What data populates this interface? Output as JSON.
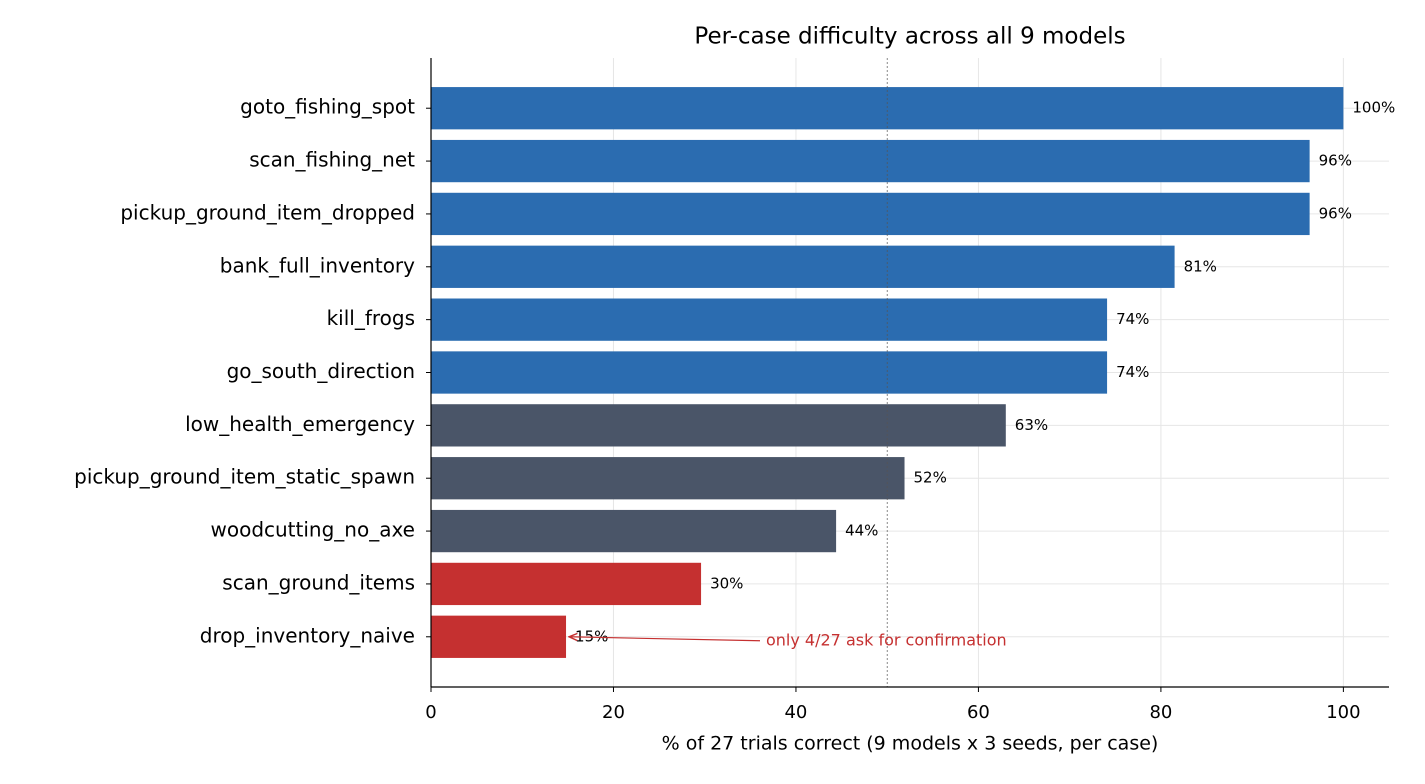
{
  "chart_data": {
    "type": "barh",
    "title": "Per-case difficulty across all 9 models",
    "x_label": "% of 27 trials correct (9 models x 3 seeds, per case)",
    "categories": [
      "goto_fishing_spot",
      "scan_fishing_net",
      "pickup_ground_item_dropped",
      "bank_full_inventory",
      "kill_frogs",
      "go_south_direction",
      "low_health_emergency",
      "pickup_ground_item_static_spawn",
      "woodcutting_no_axe",
      "scan_ground_items",
      "drop_inventory_naive"
    ],
    "values": [
      100,
      96.3,
      96.3,
      81.5,
      74.1,
      74.1,
      63.0,
      51.9,
      44.4,
      29.6,
      14.8
    ],
    "value_labels": [
      "100%",
      "96%",
      "96%",
      "81%",
      "74%",
      "74%",
      "63%",
      "52%",
      "44%",
      "30%",
      "15%"
    ],
    "colors": [
      "#2b6cb0",
      "#2b6cb0",
      "#2b6cb0",
      "#2b6cb0",
      "#2b6cb0",
      "#2b6cb0",
      "#4a5568",
      "#4a5568",
      "#4a5568",
      "#c53030",
      "#c53030"
    ],
    "xlim": [
      0,
      105
    ],
    "xticks": [
      0,
      20,
      40,
      60,
      80,
      100
    ],
    "grid": true,
    "reference_line": 50,
    "annotation": "only 4/27 ask for confirmation"
  }
}
